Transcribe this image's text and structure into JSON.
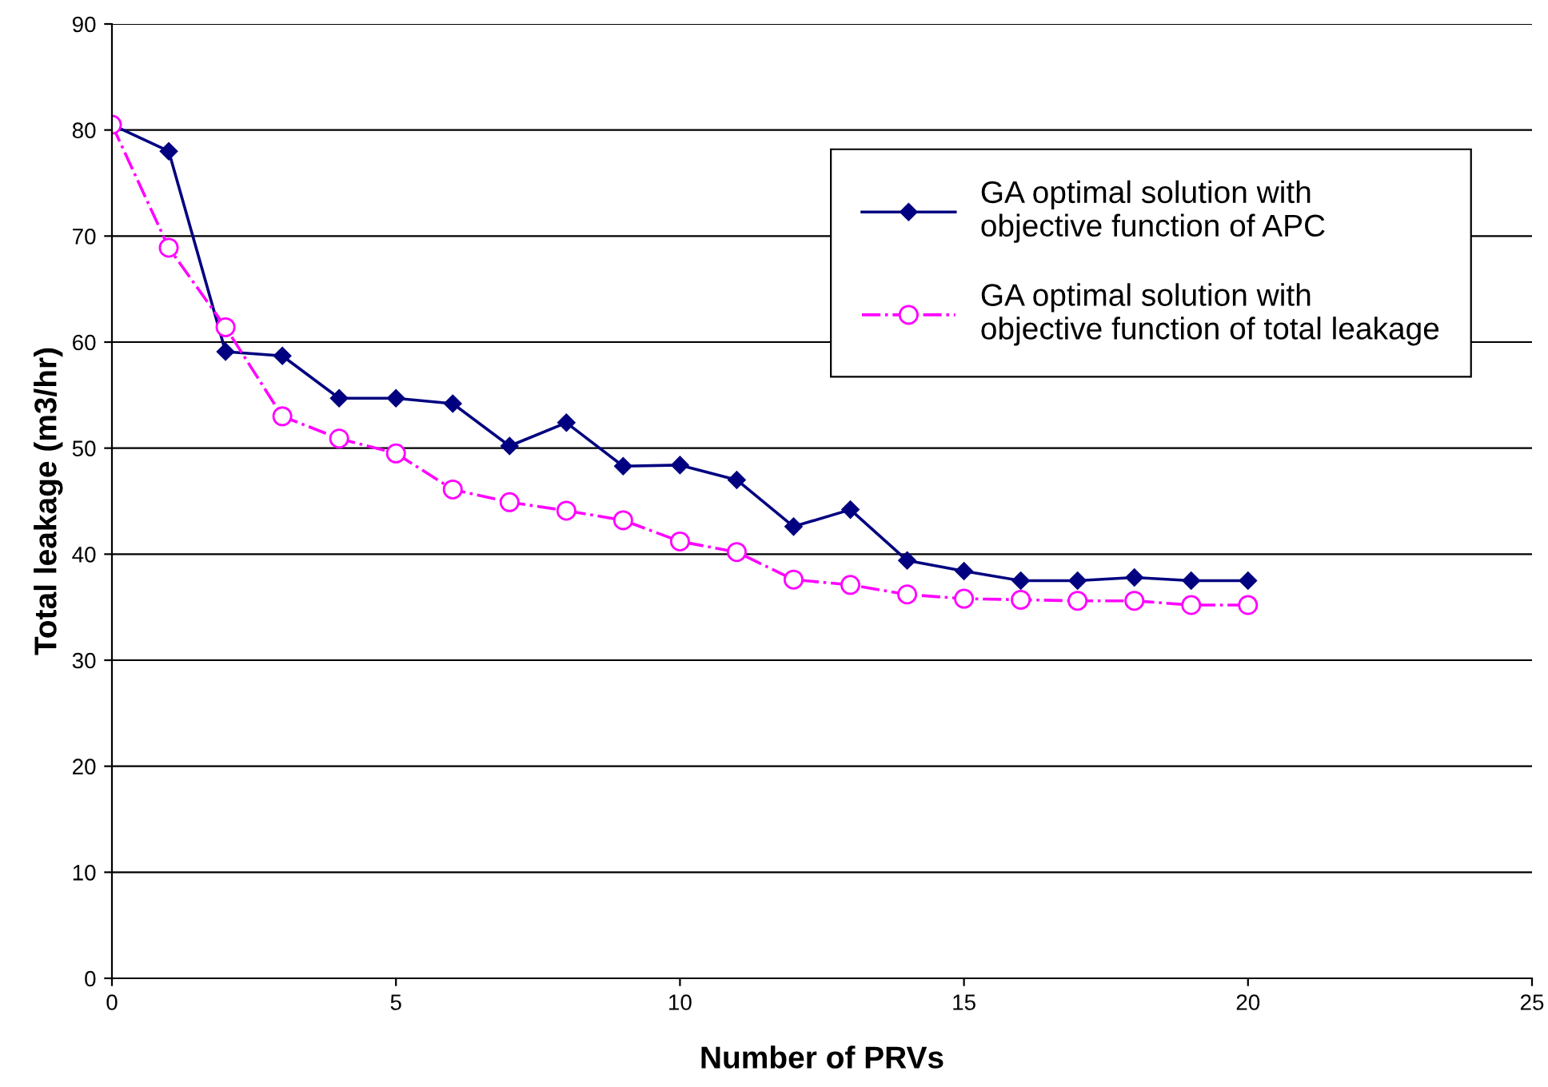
{
  "chart_data": {
    "type": "line",
    "xlabel": "Number of PRVs",
    "ylabel": "Total leakage (m3/hr)",
    "x": [
      0,
      1,
      2,
      3,
      4,
      5,
      6,
      7,
      8,
      9,
      10,
      11,
      12,
      13,
      14,
      15,
      16,
      17,
      18,
      19,
      20
    ],
    "series": [
      {
        "name": "GA optimal solution with objective function of APC",
        "color": "#000080",
        "marker": "diamond",
        "line_style": "solid",
        "values": [
          80.5,
          78.0,
          59.1,
          58.7,
          54.7,
          54.7,
          54.2,
          50.2,
          52.4,
          48.3,
          48.4,
          47.0,
          42.6,
          44.2,
          39.4,
          38.4,
          37.5,
          37.5,
          37.8,
          37.5,
          37.5
        ]
      },
      {
        "name": "GA optimal solution with objective function of total leakage",
        "color": "#ff00ff",
        "marker": "circle",
        "line_style": "dashdot",
        "values": [
          80.5,
          68.9,
          61.4,
          53.0,
          50.9,
          49.5,
          46.1,
          44.9,
          44.1,
          43.2,
          41.2,
          40.2,
          37.6,
          37.1,
          36.2,
          35.8,
          35.7,
          35.6,
          35.6,
          35.2,
          35.2
        ]
      }
    ],
    "xlim": [
      0,
      25
    ],
    "xticks": [
      0,
      5,
      10,
      15,
      20,
      25
    ],
    "ylim": [
      0,
      90
    ],
    "yticks": [
      0,
      10,
      20,
      30,
      40,
      50,
      60,
      70,
      80,
      90
    ],
    "grid": "y",
    "legend": "top right"
  }
}
